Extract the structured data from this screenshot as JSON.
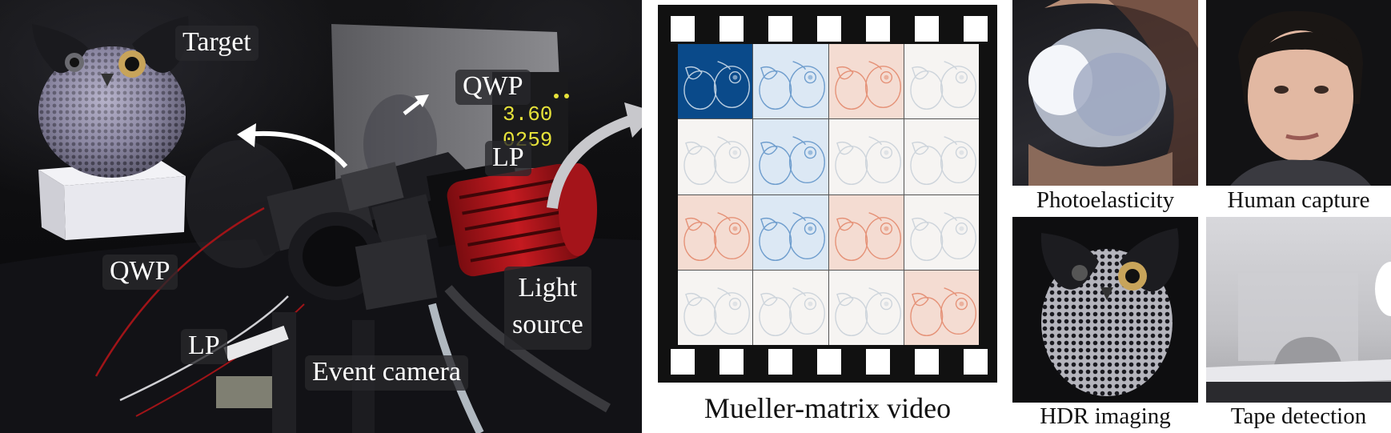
{
  "photo_labels": {
    "target": "Target",
    "qwp_top": "QWP",
    "lp_top": "LP",
    "qwp_left": "QWP",
    "lp_left": "LP",
    "light_source_line1": "Light",
    "light_source_line2": "source",
    "event_camera": "Event camera"
  },
  "film": {
    "caption": "Mueller-matrix video",
    "cells": [
      "blue",
      "blue-light",
      "red-light",
      "neutral",
      "neutral",
      "blue-light",
      "neutral",
      "neutral",
      "red-light",
      "blue-light",
      "red-light",
      "neutral",
      "neutral",
      "neutral",
      "neutral",
      "red-light"
    ]
  },
  "applications": [
    {
      "caption": "Photoelasticity"
    },
    {
      "caption": "Human capture"
    },
    {
      "caption": "HDR imaging"
    },
    {
      "caption": "Tape detection"
    }
  ],
  "colors": {
    "film_frame": "#111111",
    "mm_blue": "#0a4a8a",
    "mm_red": "#e07a5a",
    "camera_red": "#b0161c"
  },
  "icons": [
    "owl-figurine",
    "power-supply",
    "event-camera",
    "light-source",
    "arrow-curved"
  ]
}
